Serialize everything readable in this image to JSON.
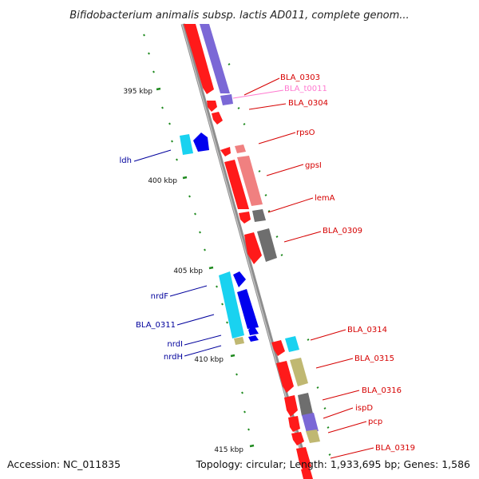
{
  "title": "Bifidobacterium animalis subsp. lactis AD011, complete genom...",
  "footer": {
    "accession": "Accession: NC_011835",
    "summary": "Topology: circular; Length: 1,933,695 bp; Genes: 1,586"
  },
  "ticks": [
    "395 kbp",
    "400 kbp",
    "405 kbp",
    "410 kbp",
    "415 kbp"
  ],
  "colors": {
    "red": "#ff1a1a",
    "pink_red": "#f08080",
    "blue": "#0000ee",
    "cyan": "#19d2f0",
    "purple": "#7b68d6",
    "gray": "#6e6e6e",
    "khaki": "#c0b872",
    "label_red": "#d60000",
    "label_blue": "#00009c",
    "label_pink": "#ff7ad0",
    "tick_green": "#1f8a1f",
    "backbone": "#909090"
  },
  "genes_right": [
    {
      "name": "BLA_0303",
      "color": "label_red"
    },
    {
      "name": "BLA_t0011",
      "color": "label_pink"
    },
    {
      "name": "BLA_0304",
      "color": "label_red"
    },
    {
      "name": "rpsO",
      "color": "label_red"
    },
    {
      "name": "gpsI",
      "color": "label_red"
    },
    {
      "name": "lemA",
      "color": "label_red"
    },
    {
      "name": "BLA_0309",
      "color": "label_red"
    },
    {
      "name": "BLA_0314",
      "color": "label_red"
    },
    {
      "name": "BLA_0315",
      "color": "label_red"
    },
    {
      "name": "BLA_0316",
      "color": "label_red"
    },
    {
      "name": "ispD",
      "color": "label_red"
    },
    {
      "name": "pcp",
      "color": "label_red"
    },
    {
      "name": "BLA_0319",
      "color": "label_red"
    }
  ],
  "genes_left": [
    {
      "name": "ldh",
      "color": "label_blue"
    },
    {
      "name": "nrdF",
      "color": "label_blue"
    },
    {
      "name": "BLA_0311",
      "color": "label_blue"
    },
    {
      "name": "nrdI",
      "color": "label_blue"
    },
    {
      "name": "nrdH",
      "color": "label_blue"
    }
  ]
}
